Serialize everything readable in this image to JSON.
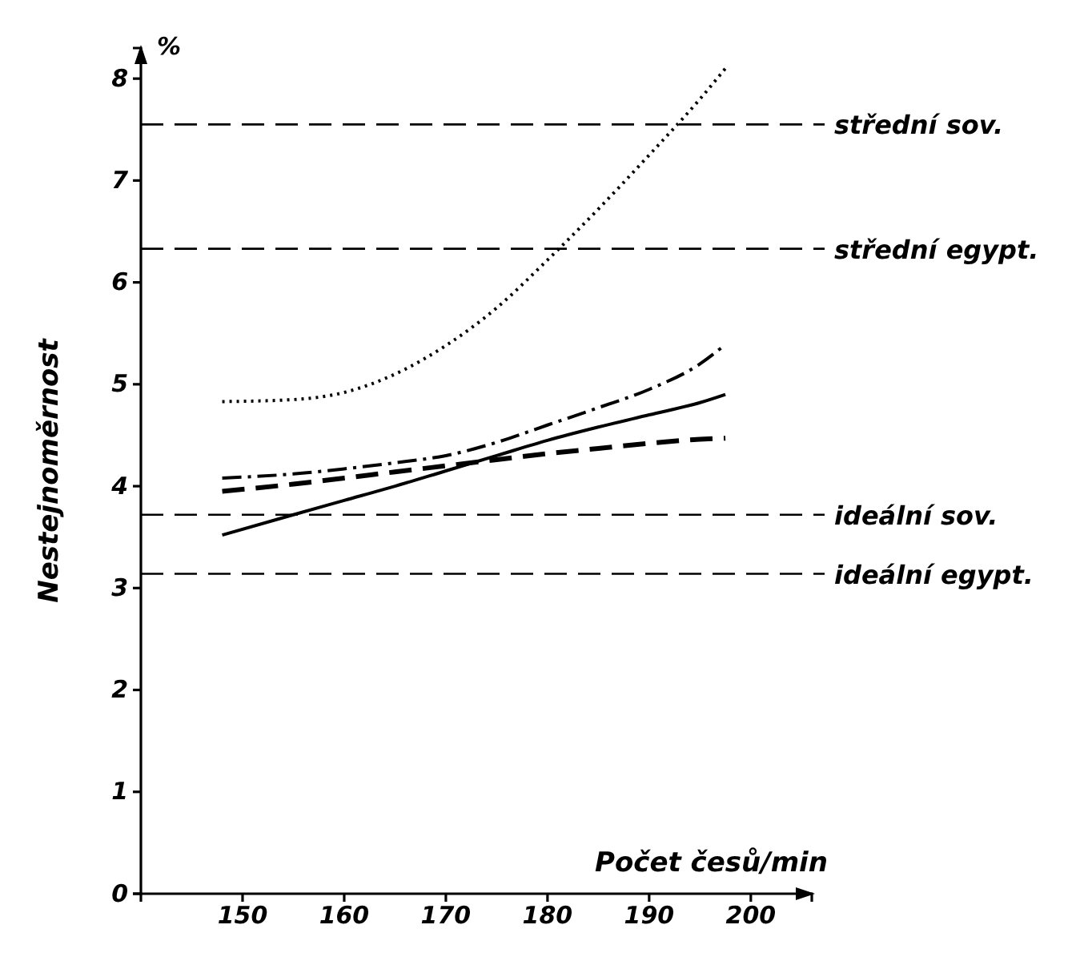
{
  "chart_data": {
    "type": "line",
    "xlabel": "Počet česů/min",
    "ylabel": "Nestejnoměrnost",
    "annotations": [
      "%"
    ],
    "x": [
      148,
      155,
      160,
      165,
      170,
      175,
      180,
      185,
      190,
      195,
      197.5
    ],
    "series": [
      {
        "color": "#000000",
        "line_style": "dotted",
        "values": [
          4.83,
          4.85,
          4.92,
          5.1,
          5.38,
          5.75,
          6.22,
          6.72,
          7.25,
          7.8,
          8.1
        ]
      },
      {
        "color": "#000000",
        "line_style": "dashdot",
        "values": [
          4.08,
          4.12,
          4.17,
          4.23,
          4.3,
          4.43,
          4.6,
          4.77,
          4.95,
          5.2,
          5.39
        ]
      },
      {
        "color": "#000000",
        "line_style": "solid",
        "values": [
          3.52,
          3.72,
          3.86,
          4.0,
          4.15,
          4.3,
          4.45,
          4.58,
          4.7,
          4.82,
          4.9
        ]
      },
      {
        "color": "#000000",
        "line_style": "dashed",
        "values": [
          3.95,
          4.02,
          4.08,
          4.14,
          4.2,
          4.26,
          4.32,
          4.37,
          4.42,
          4.46,
          4.47
        ]
      }
    ],
    "xlim": [
      140,
      206
    ],
    "xticks": [
      150,
      160,
      170,
      180,
      190,
      200
    ],
    "ylim": [
      0,
      8.3
    ],
    "yticks": [
      0,
      1,
      2,
      3,
      4,
      5,
      6,
      7,
      8
    ],
    "ref_lines": [
      {
        "axis": "y",
        "value": 7.55,
        "label": "střední sov.",
        "color": "#000000",
        "line_style": "dashed"
      },
      {
        "axis": "y",
        "value": 6.33,
        "label": "střední egypt.",
        "color": "#000000",
        "line_style": "dashed"
      },
      {
        "axis": "y",
        "value": 3.72,
        "label": "ideální sov.",
        "color": "#000000",
        "line_style": "dashed"
      },
      {
        "axis": "y",
        "value": 3.14,
        "label": "ideální egypt.",
        "color": "#000000",
        "line_style": "dashed"
      }
    ],
    "grid": false
  }
}
